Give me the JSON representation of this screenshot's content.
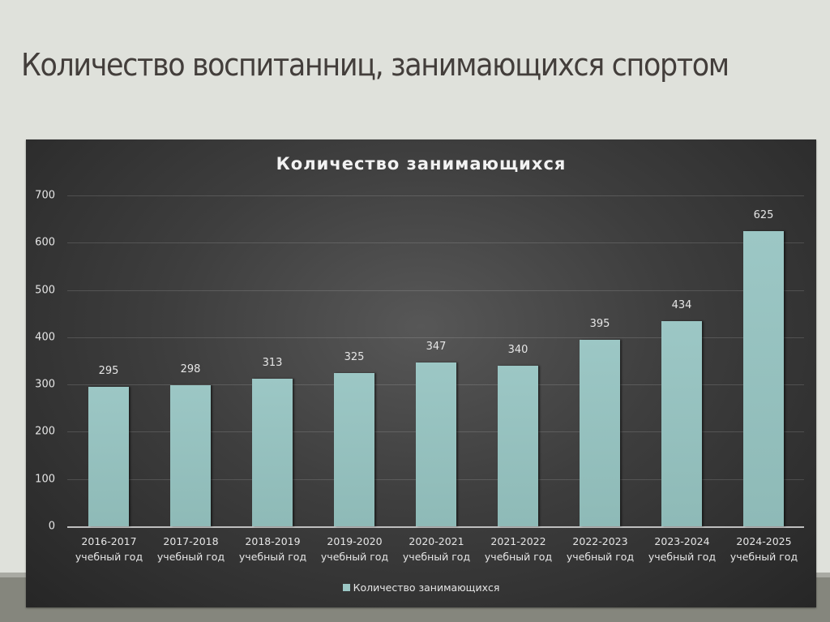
{
  "slide": {
    "title": "Количество воспитанниц,  занимающихся спортом"
  },
  "colors": {
    "slide_background": "#dfe1db",
    "bottom_band": "#85867d",
    "chart_background": "#3e3e3e",
    "bar": "#94c0bd",
    "text_light": "#e6e6e6",
    "title_text": "#433e3b"
  },
  "chart_data": {
    "type": "bar",
    "title": "Количество занимающихся",
    "xlabel": "",
    "ylabel": "",
    "ylim": [
      0,
      700
    ],
    "yticks": [
      0,
      100,
      200,
      300,
      400,
      500,
      600,
      700
    ],
    "grid": true,
    "legend_position": "bottom",
    "categories": [
      "2016-2017 учебный год",
      "2017-2018 учебный год",
      "2018-2019 учебный год",
      "2019-2020 учебный год",
      "2020-2021 учебный год",
      "2021-2022 учебный год",
      "2022-2023 учебный год",
      "2023-2024 учебный год",
      "2024-2025 учебный год"
    ],
    "category_lines": [
      [
        "2016-2017",
        "учебный год"
      ],
      [
        "2017-2018",
        "учебный год"
      ],
      [
        "2018-2019",
        "учебный год"
      ],
      [
        "2019-2020",
        "учебный год"
      ],
      [
        "2020-2021",
        "учебный год"
      ],
      [
        "2021-2022",
        "учебный год"
      ],
      [
        "2022-2023",
        "учебный год"
      ],
      [
        "2023-2024",
        "учебный год"
      ],
      [
        "2024-2025",
        "учебный год"
      ]
    ],
    "series": [
      {
        "name": "Количество занимающихся",
        "values": [
          295,
          298,
          313,
          325,
          347,
          340,
          395,
          434,
          625
        ],
        "data_labels": [
          "295",
          "298",
          "313",
          "325",
          "347",
          "340",
          "395",
          "434",
          "625"
        ]
      }
    ],
    "legend": [
      "Количество занимающихся"
    ]
  }
}
